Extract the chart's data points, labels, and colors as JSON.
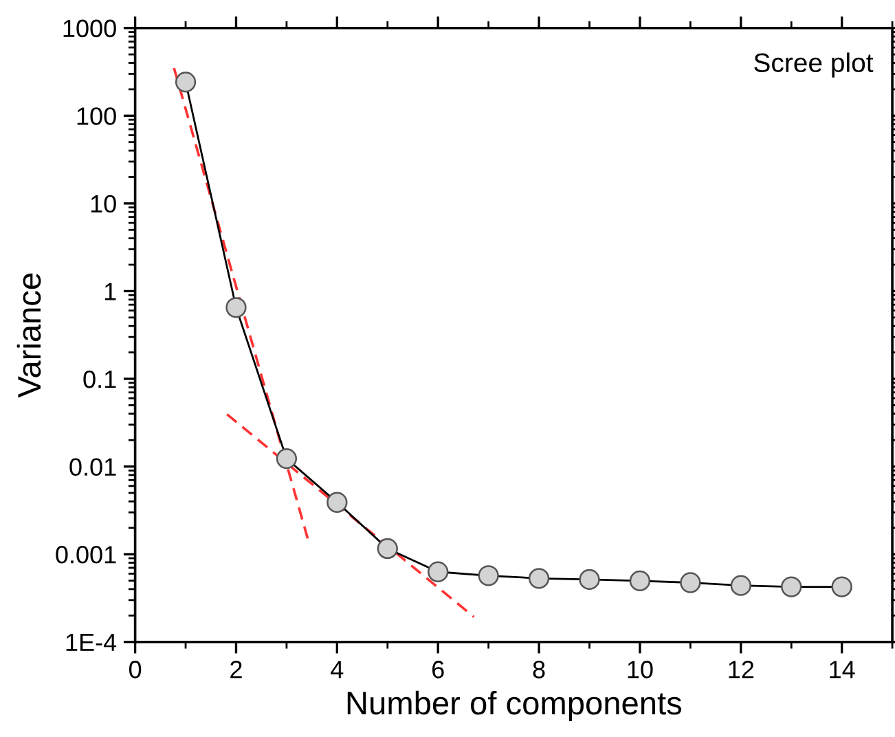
{
  "chart_data": {
    "type": "line",
    "title": "Scree plot",
    "xlabel": "Number of components",
    "ylabel": "Variance",
    "x": [
      1,
      2,
      3,
      4,
      5,
      6,
      7,
      8,
      9,
      10,
      11,
      12,
      13,
      14
    ],
    "series": [
      {
        "color": "#000000",
        "marker": "circle",
        "line_style": "solid",
        "values": [
          242,
          0.65,
          0.0123,
          0.0039,
          0.00116,
          0.00063,
          0.00057,
          0.00053,
          0.000515,
          0.000497,
          0.000474,
          0.00044,
          0.000425,
          0.000425
        ]
      },
      {
        "color": "#ff3333",
        "marker": "none",
        "line_style": "dashed",
        "x": [
          0.77,
          3.42
        ],
        "values": [
          350,
          0.0015
        ]
      },
      {
        "color": "#ff3333",
        "marker": "none",
        "line_style": "dashed",
        "x": [
          1.82,
          6.71
        ],
        "values": [
          0.0394,
          0.000193
        ]
      }
    ],
    "log": "y",
    "xlim": [
      0,
      15
    ],
    "xticks": [
      0,
      2,
      4,
      6,
      8,
      10,
      12,
      14
    ],
    "ylim": [
      0.0001,
      1000
    ],
    "yticks": [
      {
        "value": 0.0001,
        "label": "1E-4"
      },
      0.001,
      0.01,
      0.1,
      1,
      10,
      100,
      1000
    ],
    "grid": false,
    "legend": false
  }
}
